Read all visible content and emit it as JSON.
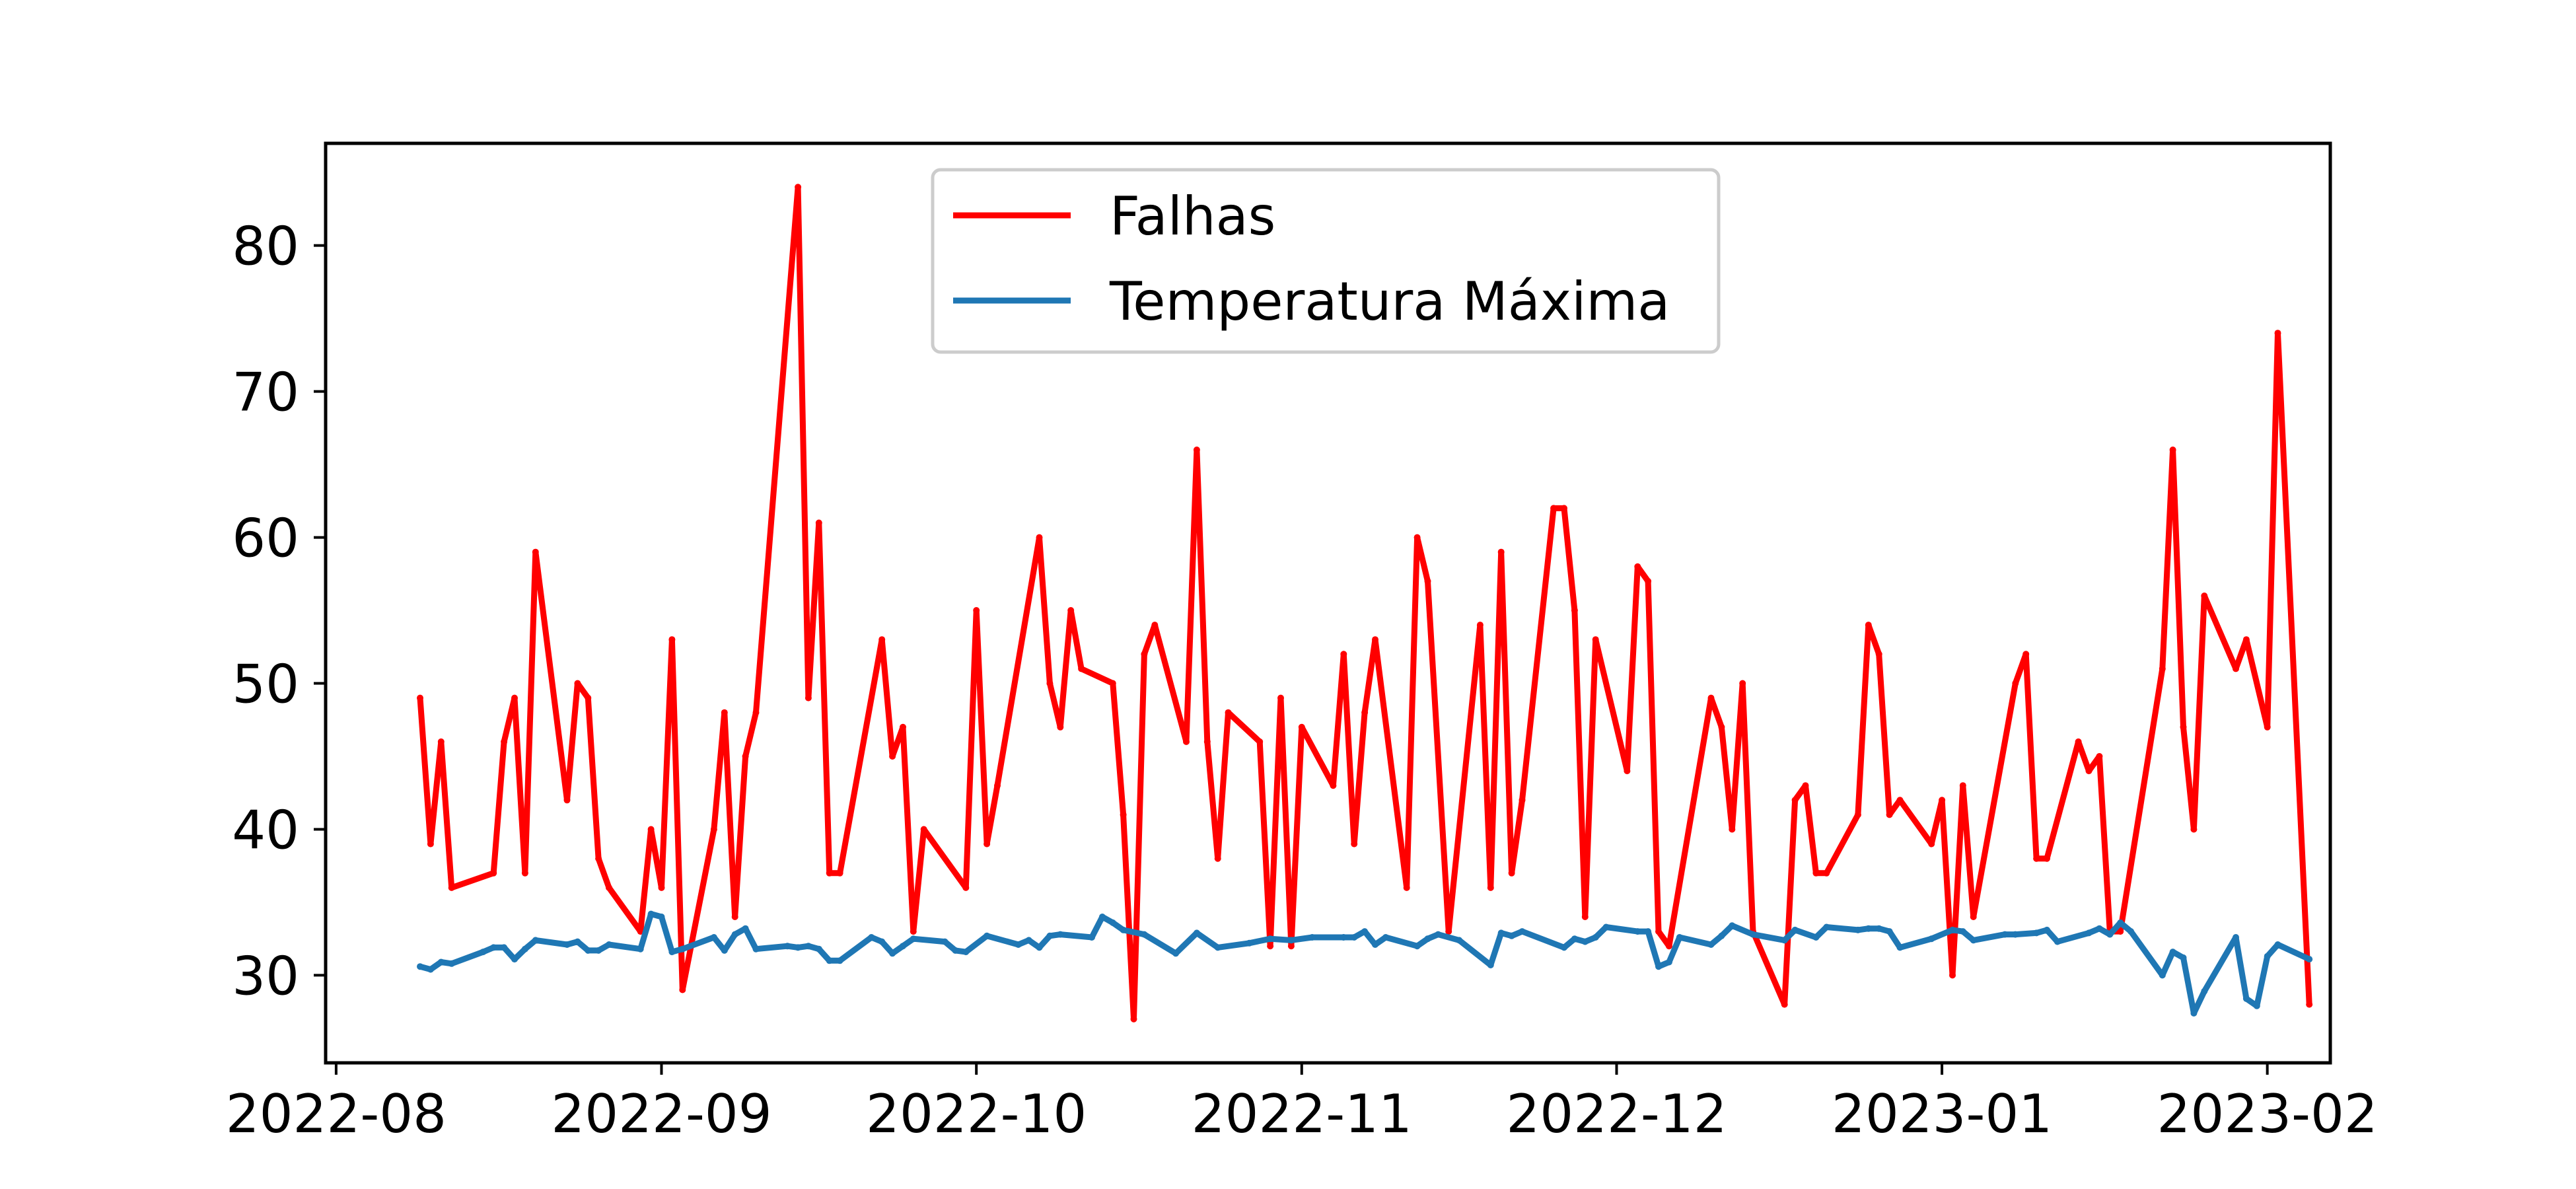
{
  "chart_data": {
    "type": "line",
    "title": "",
    "xlabel": "",
    "ylabel": "",
    "x_axis_type": "date",
    "xlim": [
      "2022-07-31",
      "2023-02-07"
    ],
    "ylim": [
      24,
      87
    ],
    "x_ticks": [
      "2022-08-01",
      "2022-09-01",
      "2022-10-01",
      "2022-11-01",
      "2022-12-01",
      "2023-01-01",
      "2023-02-01"
    ],
    "x_tick_labels": [
      "2022-08",
      "2022-09",
      "2022-10",
      "2022-11",
      "2022-12",
      "2023-01",
      "2023-02"
    ],
    "y_ticks": [
      30,
      40,
      50,
      60,
      70,
      80
    ],
    "y_tick_labels": [
      "30",
      "40",
      "50",
      "60",
      "70",
      "80"
    ],
    "grid": false,
    "legend_position": "top-center",
    "series": [
      {
        "name": "Falhas",
        "color": "#ff0000",
        "points": [
          [
            "2022-08-09",
            49
          ],
          [
            "2022-08-10",
            39
          ],
          [
            "2022-08-11",
            46
          ],
          [
            "2022-08-12",
            36
          ],
          [
            "2022-08-16",
            37
          ],
          [
            "2022-08-17",
            46
          ],
          [
            "2022-08-18",
            49
          ],
          [
            "2022-08-19",
            37
          ],
          [
            "2022-08-20",
            59
          ],
          [
            "2022-08-23",
            42
          ],
          [
            "2022-08-24",
            50
          ],
          [
            "2022-08-25",
            49
          ],
          [
            "2022-08-26",
            38
          ],
          [
            "2022-08-27",
            36
          ],
          [
            "2022-08-30",
            33
          ],
          [
            "2022-08-31",
            40
          ],
          [
            "2022-09-01",
            36
          ],
          [
            "2022-09-02",
            53
          ],
          [
            "2022-09-03",
            29
          ],
          [
            "2022-09-06",
            40
          ],
          [
            "2022-09-07",
            48
          ],
          [
            "2022-09-08",
            34
          ],
          [
            "2022-09-09",
            45
          ],
          [
            "2022-09-10",
            48
          ],
          [
            "2022-09-14",
            84
          ],
          [
            "2022-09-15",
            49
          ],
          [
            "2022-09-16",
            61
          ],
          [
            "2022-09-17",
            37
          ],
          [
            "2022-09-18",
            37
          ],
          [
            "2022-09-22",
            53
          ],
          [
            "2022-09-23",
            45
          ],
          [
            "2022-09-24",
            47
          ],
          [
            "2022-09-25",
            33
          ],
          [
            "2022-09-26",
            40
          ],
          [
            "2022-09-30",
            36
          ],
          [
            "2022-10-01",
            55
          ],
          [
            "2022-10-02",
            39
          ],
          [
            "2022-10-03",
            43
          ],
          [
            "2022-10-07",
            60
          ],
          [
            "2022-10-08",
            50
          ],
          [
            "2022-10-09",
            47
          ],
          [
            "2022-10-10",
            55
          ],
          [
            "2022-10-11",
            51
          ],
          [
            "2022-10-14",
            50
          ],
          [
            "2022-10-15",
            41
          ],
          [
            "2022-10-16",
            27
          ],
          [
            "2022-10-17",
            52
          ],
          [
            "2022-10-18",
            54
          ],
          [
            "2022-10-21",
            46
          ],
          [
            "2022-10-22",
            66
          ],
          [
            "2022-10-23",
            46
          ],
          [
            "2022-10-24",
            38
          ],
          [
            "2022-10-25",
            48
          ],
          [
            "2022-10-28",
            46
          ],
          [
            "2022-10-29",
            32
          ],
          [
            "2022-10-30",
            49
          ],
          [
            "2022-10-31",
            32
          ],
          [
            "2022-11-01",
            47
          ],
          [
            "2022-11-04",
            43
          ],
          [
            "2022-11-05",
            52
          ],
          [
            "2022-11-06",
            39
          ],
          [
            "2022-11-07",
            48
          ],
          [
            "2022-11-08",
            53
          ],
          [
            "2022-11-11",
            36
          ],
          [
            "2022-11-12",
            60
          ],
          [
            "2022-11-13",
            57
          ],
          [
            "2022-11-15",
            33
          ],
          [
            "2022-11-18",
            54
          ],
          [
            "2022-11-19",
            36
          ],
          [
            "2022-11-20",
            59
          ],
          [
            "2022-11-21",
            37
          ],
          [
            "2022-11-22",
            42
          ],
          [
            "2022-11-25",
            62
          ],
          [
            "2022-11-26",
            62
          ],
          [
            "2022-11-27",
            55
          ],
          [
            "2022-11-28",
            34
          ],
          [
            "2022-11-29",
            53
          ],
          [
            "2022-12-02",
            44
          ],
          [
            "2022-12-03",
            58
          ],
          [
            "2022-12-04",
            57
          ],
          [
            "2022-12-05",
            33
          ],
          [
            "2022-12-06",
            32
          ],
          [
            "2022-12-10",
            49
          ],
          [
            "2022-12-11",
            47
          ],
          [
            "2022-12-12",
            40
          ],
          [
            "2022-12-13",
            50
          ],
          [
            "2022-12-14",
            33
          ],
          [
            "2022-12-17",
            28
          ],
          [
            "2022-12-18",
            42
          ],
          [
            "2022-12-19",
            43
          ],
          [
            "2022-12-20",
            37
          ],
          [
            "2022-12-21",
            37
          ],
          [
            "2022-12-24",
            41
          ],
          [
            "2022-12-25",
            54
          ],
          [
            "2022-12-26",
            52
          ],
          [
            "2022-12-27",
            41
          ],
          [
            "2022-12-28",
            42
          ],
          [
            "2022-12-31",
            39
          ],
          [
            "2023-01-01",
            42
          ],
          [
            "2023-01-02",
            30
          ],
          [
            "2023-01-03",
            43
          ],
          [
            "2023-01-04",
            34
          ],
          [
            "2023-01-08",
            50
          ],
          [
            "2023-01-09",
            52
          ],
          [
            "2023-01-10",
            38
          ],
          [
            "2023-01-11",
            38
          ],
          [
            "2023-01-14",
            46
          ],
          [
            "2023-01-15",
            44
          ],
          [
            "2023-01-16",
            45
          ],
          [
            "2023-01-17",
            33
          ],
          [
            "2023-01-18",
            33
          ],
          [
            "2023-01-22",
            51
          ],
          [
            "2023-01-23",
            66
          ],
          [
            "2023-01-24",
            47
          ],
          [
            "2023-01-25",
            40
          ],
          [
            "2023-01-26",
            56
          ],
          [
            "2023-01-29",
            51
          ],
          [
            "2023-01-30",
            53
          ],
          [
            "2023-02-01",
            47
          ],
          [
            "2023-02-02",
            74
          ],
          [
            "2023-02-05",
            28
          ]
        ]
      },
      {
        "name": "Temperatura Máxima",
        "color": "#1f77b4",
        "points": [
          [
            "2022-08-09",
            30.6
          ],
          [
            "2022-08-10",
            30.4
          ],
          [
            "2022-08-11",
            30.9
          ],
          [
            "2022-08-12",
            30.8
          ],
          [
            "2022-08-15",
            31.6
          ],
          [
            "2022-08-16",
            31.9
          ],
          [
            "2022-08-17",
            31.9
          ],
          [
            "2022-08-18",
            31.1
          ],
          [
            "2022-08-19",
            31.8
          ],
          [
            "2022-08-20",
            32.4
          ],
          [
            "2022-08-23",
            32.1
          ],
          [
            "2022-08-24",
            32.3
          ],
          [
            "2022-08-25",
            31.7
          ],
          [
            "2022-08-26",
            31.7
          ],
          [
            "2022-08-27",
            32.1
          ],
          [
            "2022-08-30",
            31.8
          ],
          [
            "2022-08-31",
            34.2
          ],
          [
            "2022-09-01",
            34.0
          ],
          [
            "2022-09-02",
            31.6
          ],
          [
            "2022-09-03",
            31.8
          ],
          [
            "2022-09-06",
            32.6
          ],
          [
            "2022-09-07",
            31.7
          ],
          [
            "2022-09-08",
            32.8
          ],
          [
            "2022-09-09",
            33.2
          ],
          [
            "2022-09-10",
            31.8
          ],
          [
            "2022-09-13",
            32.0
          ],
          [
            "2022-09-14",
            31.9
          ],
          [
            "2022-09-15",
            32.0
          ],
          [
            "2022-09-16",
            31.8
          ],
          [
            "2022-09-17",
            31.0
          ],
          [
            "2022-09-18",
            31.0
          ],
          [
            "2022-09-21",
            32.6
          ],
          [
            "2022-09-22",
            32.3
          ],
          [
            "2022-09-23",
            31.5
          ],
          [
            "2022-09-24",
            32.0
          ],
          [
            "2022-09-25",
            32.5
          ],
          [
            "2022-09-28",
            32.3
          ],
          [
            "2022-09-29",
            31.7
          ],
          [
            "2022-09-30",
            31.6
          ],
          [
            "2022-10-02",
            32.7
          ],
          [
            "2022-10-05",
            32.1
          ],
          [
            "2022-10-06",
            32.4
          ],
          [
            "2022-10-07",
            31.9
          ],
          [
            "2022-10-08",
            32.7
          ],
          [
            "2022-10-09",
            32.8
          ],
          [
            "2022-10-12",
            32.6
          ],
          [
            "2022-10-13",
            34.0
          ],
          [
            "2022-10-14",
            33.6
          ],
          [
            "2022-10-15",
            33.1
          ],
          [
            "2022-10-17",
            32.8
          ],
          [
            "2022-10-20",
            31.5
          ],
          [
            "2022-10-22",
            32.9
          ],
          [
            "2022-10-24",
            31.9
          ],
          [
            "2022-10-27",
            32.2
          ],
          [
            "2022-10-29",
            32.5
          ],
          [
            "2022-10-31",
            32.4
          ],
          [
            "2022-11-02",
            32.6
          ],
          [
            "2022-11-05",
            32.6
          ],
          [
            "2022-11-06",
            32.6
          ],
          [
            "2022-11-07",
            33.0
          ],
          [
            "2022-11-08",
            32.1
          ],
          [
            "2022-11-09",
            32.6
          ],
          [
            "2022-11-12",
            32.0
          ],
          [
            "2022-11-13",
            32.5
          ],
          [
            "2022-11-14",
            32.8
          ],
          [
            "2022-11-16",
            32.4
          ],
          [
            "2022-11-19",
            30.7
          ],
          [
            "2022-11-20",
            32.9
          ],
          [
            "2022-11-21",
            32.7
          ],
          [
            "2022-11-22",
            33.0
          ],
          [
            "2022-11-26",
            31.9
          ],
          [
            "2022-11-27",
            32.5
          ],
          [
            "2022-11-28",
            32.3
          ],
          [
            "2022-11-29",
            32.6
          ],
          [
            "2022-11-30",
            33.3
          ],
          [
            "2022-12-03",
            33.0
          ],
          [
            "2022-12-04",
            33.0
          ],
          [
            "2022-12-05",
            30.6
          ],
          [
            "2022-12-06",
            30.9
          ],
          [
            "2022-12-07",
            32.6
          ],
          [
            "2022-12-10",
            32.1
          ],
          [
            "2022-12-11",
            32.7
          ],
          [
            "2022-12-12",
            33.4
          ],
          [
            "2022-12-14",
            32.8
          ],
          [
            "2022-12-17",
            32.4
          ],
          [
            "2022-12-18",
            33.1
          ],
          [
            "2022-12-20",
            32.6
          ],
          [
            "2022-12-21",
            33.3
          ],
          [
            "2022-12-24",
            33.1
          ],
          [
            "2022-12-25",
            33.2
          ],
          [
            "2022-12-26",
            33.2
          ],
          [
            "2022-12-27",
            33.0
          ],
          [
            "2022-12-28",
            31.9
          ],
          [
            "2022-12-31",
            32.5
          ],
          [
            "2023-01-02",
            33.1
          ],
          [
            "2023-01-03",
            33.0
          ],
          [
            "2023-01-04",
            32.4
          ],
          [
            "2023-01-07",
            32.8
          ],
          [
            "2023-01-08",
            32.8
          ],
          [
            "2023-01-10",
            32.9
          ],
          [
            "2023-01-11",
            33.1
          ],
          [
            "2023-01-12",
            32.3
          ],
          [
            "2023-01-15",
            32.9
          ],
          [
            "2023-01-16",
            33.2
          ],
          [
            "2023-01-17",
            32.8
          ],
          [
            "2023-01-18",
            33.6
          ],
          [
            "2023-01-19",
            33.0
          ],
          [
            "2023-01-22",
            30.0
          ],
          [
            "2023-01-23",
            31.6
          ],
          [
            "2023-01-24",
            31.2
          ],
          [
            "2023-01-25",
            27.4
          ],
          [
            "2023-01-26",
            28.9
          ],
          [
            "2023-01-29",
            32.6
          ],
          [
            "2023-01-30",
            28.4
          ],
          [
            "2023-01-31",
            27.9
          ],
          [
            "2023-02-01",
            31.3
          ],
          [
            "2023-02-02",
            32.1
          ],
          [
            "2023-02-05",
            31.1
          ]
        ]
      }
    ]
  }
}
